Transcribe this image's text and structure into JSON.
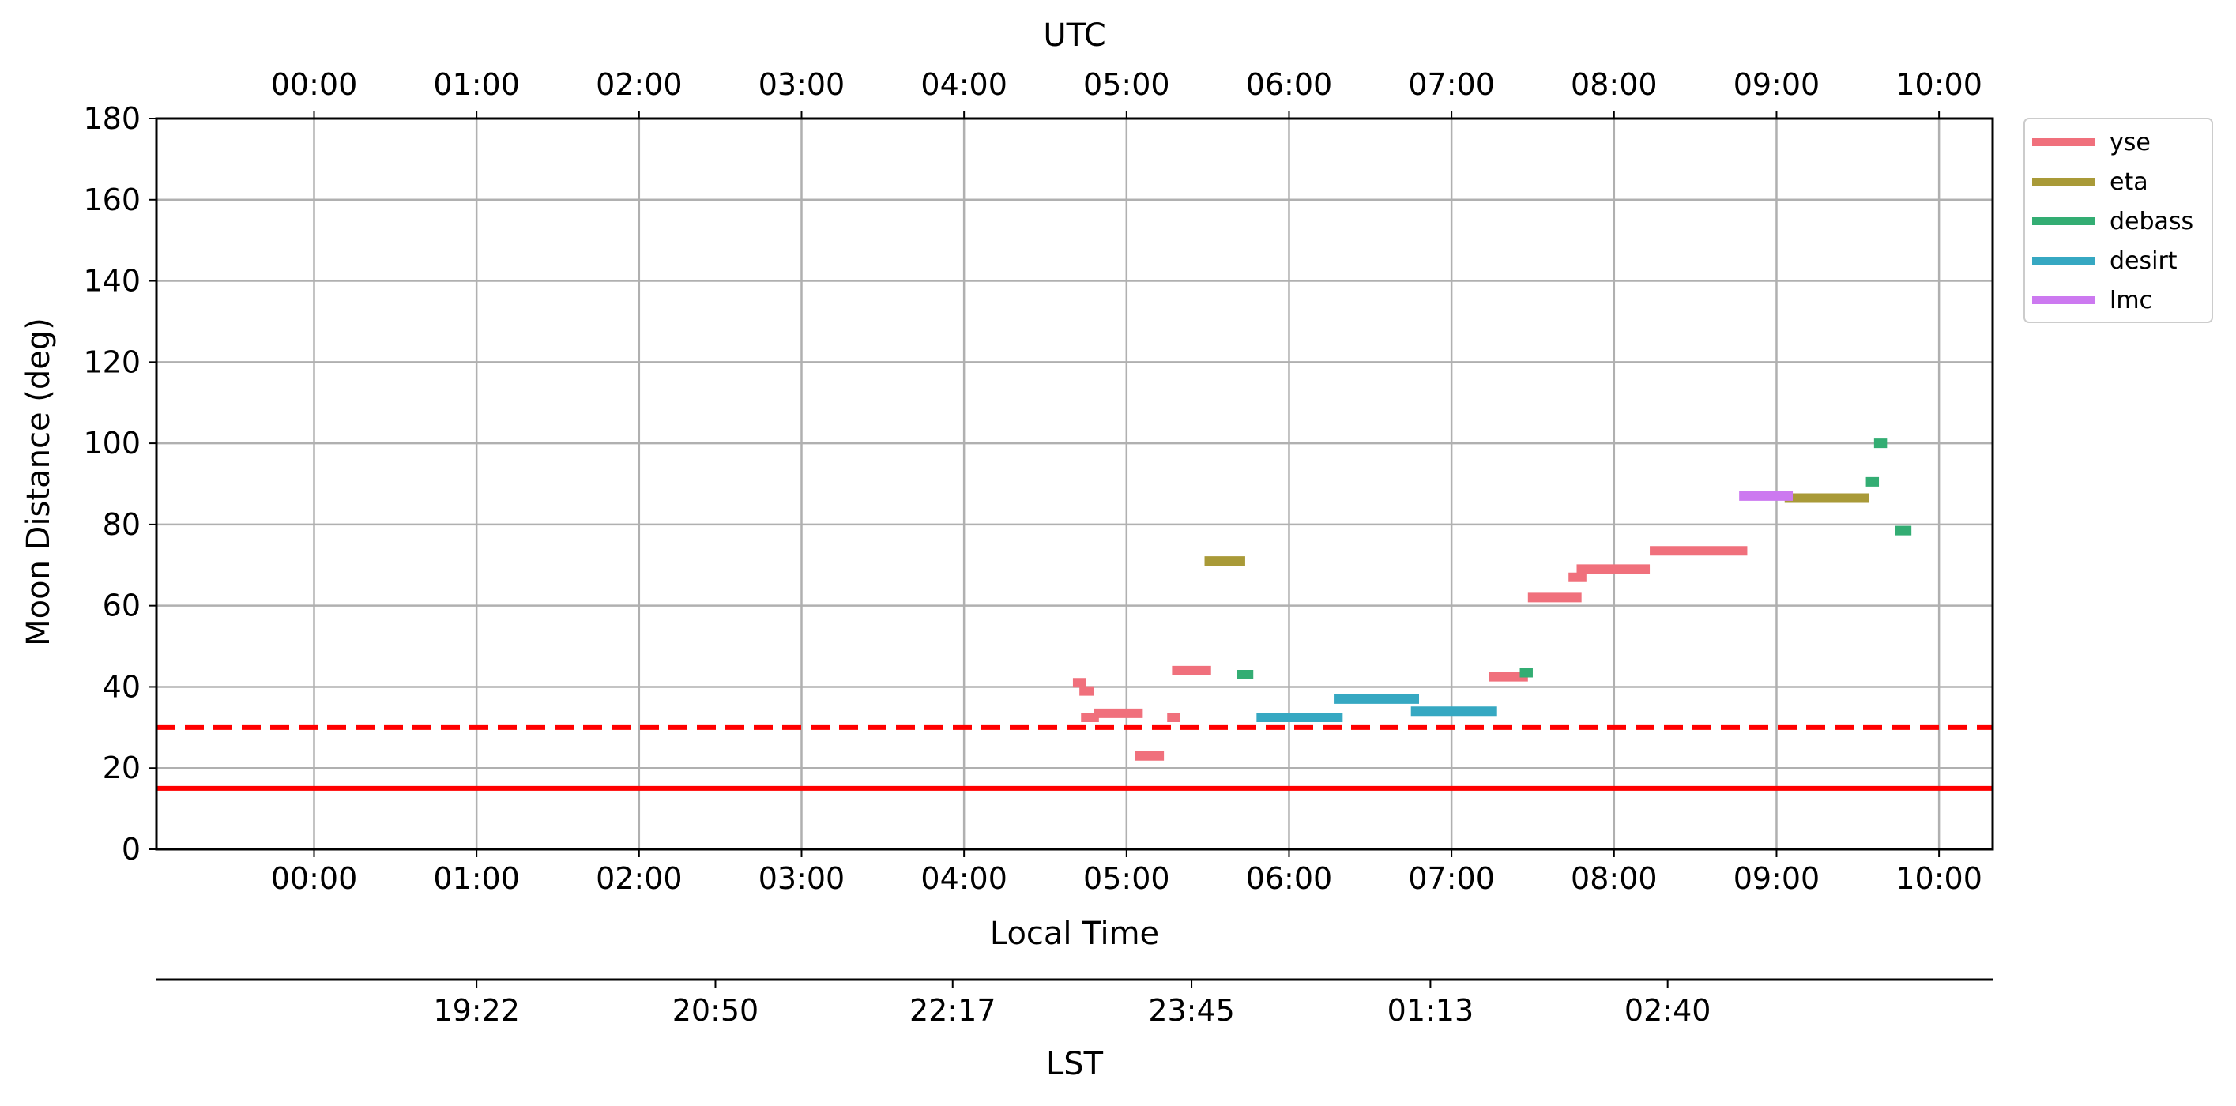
{
  "chart_data": {
    "type": "timeline",
    "title": "",
    "xlabel": "Local Time",
    "ylabel": "Moon Distance (deg)",
    "top_axis_label": "UTC",
    "lst_axis_label": "LST",
    "ylim": [
      0,
      180
    ],
    "yticks": [
      0,
      20,
      40,
      60,
      80,
      100,
      120,
      140,
      160,
      180
    ],
    "xlim_hours": [
      -0.97,
      10.33
    ],
    "local_ticks": [
      {
        "hour": 0,
        "label": "00:00"
      },
      {
        "hour": 1,
        "label": "01:00"
      },
      {
        "hour": 2,
        "label": "02:00"
      },
      {
        "hour": 3,
        "label": "03:00"
      },
      {
        "hour": 4,
        "label": "04:00"
      },
      {
        "hour": 5,
        "label": "05:00"
      },
      {
        "hour": 6,
        "label": "06:00"
      },
      {
        "hour": 7,
        "label": "07:00"
      },
      {
        "hour": 8,
        "label": "08:00"
      },
      {
        "hour": 9,
        "label": "09:00"
      },
      {
        "hour": 10,
        "label": "10:00"
      }
    ],
    "utc_ticks": [
      {
        "hour": 0,
        "label": "00:00"
      },
      {
        "hour": 1,
        "label": "01:00"
      },
      {
        "hour": 2,
        "label": "02:00"
      },
      {
        "hour": 3,
        "label": "03:00"
      },
      {
        "hour": 4,
        "label": "04:00"
      },
      {
        "hour": 5,
        "label": "05:00"
      },
      {
        "hour": 6,
        "label": "06:00"
      },
      {
        "hour": 7,
        "label": "07:00"
      },
      {
        "hour": 8,
        "label": "08:00"
      },
      {
        "hour": 9,
        "label": "09:00"
      },
      {
        "hour": 10,
        "label": "10:00"
      }
    ],
    "lst_ticks": [
      {
        "hour": 1.0,
        "label": "19:22"
      },
      {
        "hour": 2.47,
        "label": "20:50"
      },
      {
        "hour": 3.93,
        "label": "22:17"
      },
      {
        "hour": 5.4,
        "label": "23:45"
      },
      {
        "hour": 6.87,
        "label": "01:13"
      },
      {
        "hour": 8.33,
        "label": "02:40"
      }
    ],
    "grid": true,
    "legend_position": "outside-top-right",
    "thresholds": [
      {
        "value": 30,
        "style": "dashed",
        "color": "#ff0000"
      },
      {
        "value": 15,
        "style": "solid",
        "color": "#ff0000"
      }
    ],
    "series": [
      {
        "name": "yse",
        "color": "#f0707c",
        "segments": [
          {
            "start": 4.67,
            "end": 4.75,
            "y": 41
          },
          {
            "start": 4.71,
            "end": 4.8,
            "y": 39
          },
          {
            "start": 4.72,
            "end": 4.83,
            "y": 32.5
          },
          {
            "start": 4.8,
            "end": 5.1,
            "y": 33.5
          },
          {
            "start": 5.05,
            "end": 5.23,
            "y": 23
          },
          {
            "start": 5.25,
            "end": 5.33,
            "y": 32.5
          },
          {
            "start": 5.28,
            "end": 5.52,
            "y": 44
          },
          {
            "start": 7.23,
            "end": 7.47,
            "y": 42.5
          },
          {
            "start": 7.47,
            "end": 7.8,
            "y": 62
          },
          {
            "start": 7.72,
            "end": 7.83,
            "y": 67
          },
          {
            "start": 7.77,
            "end": 8.22,
            "y": 69
          },
          {
            "start": 8.22,
            "end": 8.82,
            "y": 73.5
          }
        ]
      },
      {
        "name": "eta",
        "color": "#a99a38",
        "segments": [
          {
            "start": 5.48,
            "end": 5.73,
            "y": 71
          },
          {
            "start": 9.05,
            "end": 9.57,
            "y": 86.5
          }
        ]
      },
      {
        "name": "debass",
        "color": "#33ad73",
        "segments": [
          {
            "start": 5.68,
            "end": 5.78,
            "y": 43
          },
          {
            "start": 7.42,
            "end": 7.5,
            "y": 43.5
          },
          {
            "start": 9.55,
            "end": 9.63,
            "y": 90.5
          },
          {
            "start": 9.6,
            "end": 9.68,
            "y": 100
          },
          {
            "start": 9.73,
            "end": 9.83,
            "y": 78.5
          }
        ]
      },
      {
        "name": "desirt",
        "color": "#36a8c2",
        "segments": [
          {
            "start": 5.8,
            "end": 6.33,
            "y": 32.5
          },
          {
            "start": 6.28,
            "end": 6.8,
            "y": 37
          },
          {
            "start": 6.75,
            "end": 7.28,
            "y": 34
          }
        ]
      },
      {
        "name": "lmc",
        "color": "#cc79f0",
        "segments": [
          {
            "start": 8.77,
            "end": 9.1,
            "y": 87
          }
        ]
      }
    ]
  }
}
